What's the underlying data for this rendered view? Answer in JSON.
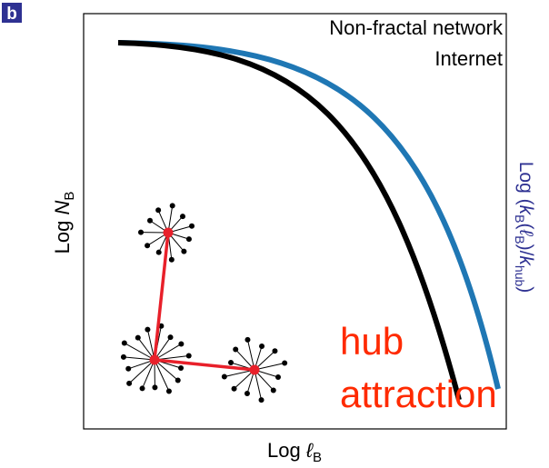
{
  "panel_label": "b",
  "legend": [
    "Non-fractal network",
    "Internet"
  ],
  "x_label": {
    "prefix": "Log ",
    "var": "ℓ",
    "sub": "B"
  },
  "y_label": {
    "prefix": "Log ",
    "var": "N",
    "sub": "B"
  },
  "y2_label": [
    "Log (",
    "k",
    "B",
    "(",
    "ℓ",
    "B",
    ")/",
    "k",
    "hub",
    ")"
  ],
  "annotation": [
    "hub",
    "attraction"
  ]
}
